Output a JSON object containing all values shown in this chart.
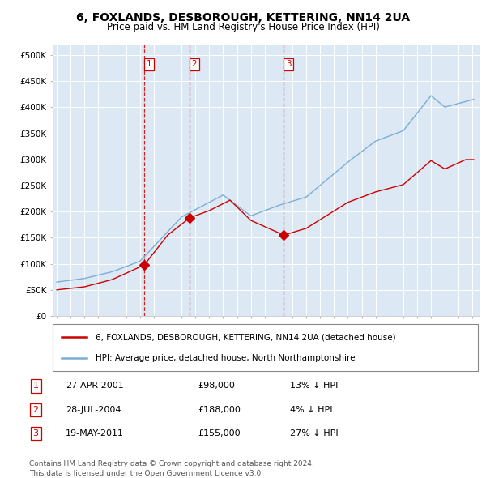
{
  "title": "6, FOXLANDS, DESBOROUGH, KETTERING, NN14 2UA",
  "subtitle": "Price paid vs. HM Land Registry's House Price Index (HPI)",
  "ylabel_ticks": [
    "£0",
    "£50K",
    "£100K",
    "£150K",
    "£200K",
    "£250K",
    "£300K",
    "£350K",
    "£400K",
    "£450K",
    "£500K"
  ],
  "ytick_values": [
    0,
    50000,
    100000,
    150000,
    200000,
    250000,
    300000,
    350000,
    400000,
    450000,
    500000
  ],
  "ylim": [
    0,
    520000
  ],
  "xlim_start": 1994.7,
  "xlim_end": 2025.5,
  "background_color": "#dce9f5",
  "grid_color": "#ffffff",
  "line_hpi_color": "#7aaed6",
  "line_price_color": "#cc0000",
  "marker_color": "#cc0000",
  "vline_color": "#cc0000",
  "sale1_x": 2001.32,
  "sale1_y": 98000,
  "sale1_label": "1",
  "sale2_x": 2004.57,
  "sale2_y": 188000,
  "sale2_label": "2",
  "sale3_x": 2011.38,
  "sale3_y": 155000,
  "sale3_label": "3",
  "legend_line1": "6, FOXLANDS, DESBOROUGH, KETTERING, NN14 2UA (detached house)",
  "legend_line2": "HPI: Average price, detached house, North Northamptonshire",
  "table_rows": [
    [
      "1",
      "27-APR-2001",
      "£98,000",
      "13% ↓ HPI"
    ],
    [
      "2",
      "28-JUL-2004",
      "£188,000",
      "4% ↓ HPI"
    ],
    [
      "3",
      "19-MAY-2011",
      "£155,000",
      "27% ↓ HPI"
    ]
  ],
  "footnote": "Contains HM Land Registry data © Crown copyright and database right 2024.\nThis data is licensed under the Open Government Licence v3.0.",
  "title_fontsize": 10,
  "subtitle_fontsize": 8.5,
  "tick_fontsize": 7.5,
  "legend_fontsize": 7.5,
  "table_fontsize": 8,
  "footnote_fontsize": 6.5
}
